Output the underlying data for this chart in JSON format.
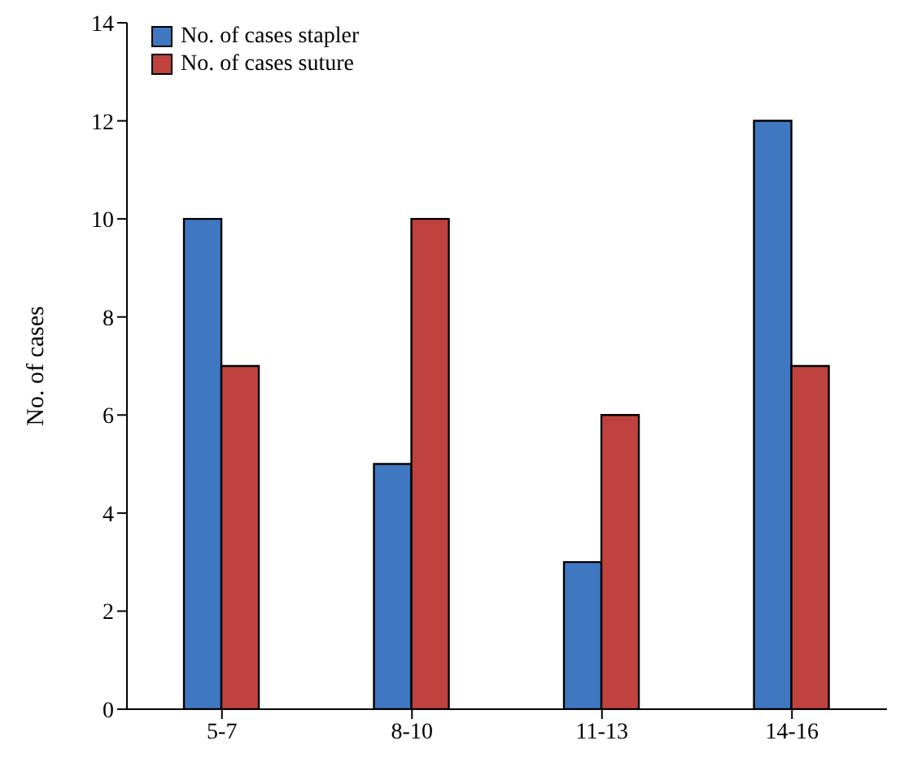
{
  "chart_data": {
    "type": "bar",
    "ylabel": "No. of cases",
    "categories": [
      "5-7",
      "8-10",
      "11-13",
      "14-16"
    ],
    "series": [
      {
        "name": "No. of cases stapler",
        "color": "#3f78c1",
        "values": [
          10,
          5,
          3,
          12
        ]
      },
      {
        "name": "No. of cases suture",
        "color": "#c0423f",
        "values": [
          7,
          10,
          6,
          7
        ]
      }
    ],
    "ylim": [
      0,
      14
    ],
    "yticks": [
      0,
      2,
      4,
      6,
      8,
      10,
      12,
      14
    ],
    "grid": false,
    "legend": "top left"
  }
}
